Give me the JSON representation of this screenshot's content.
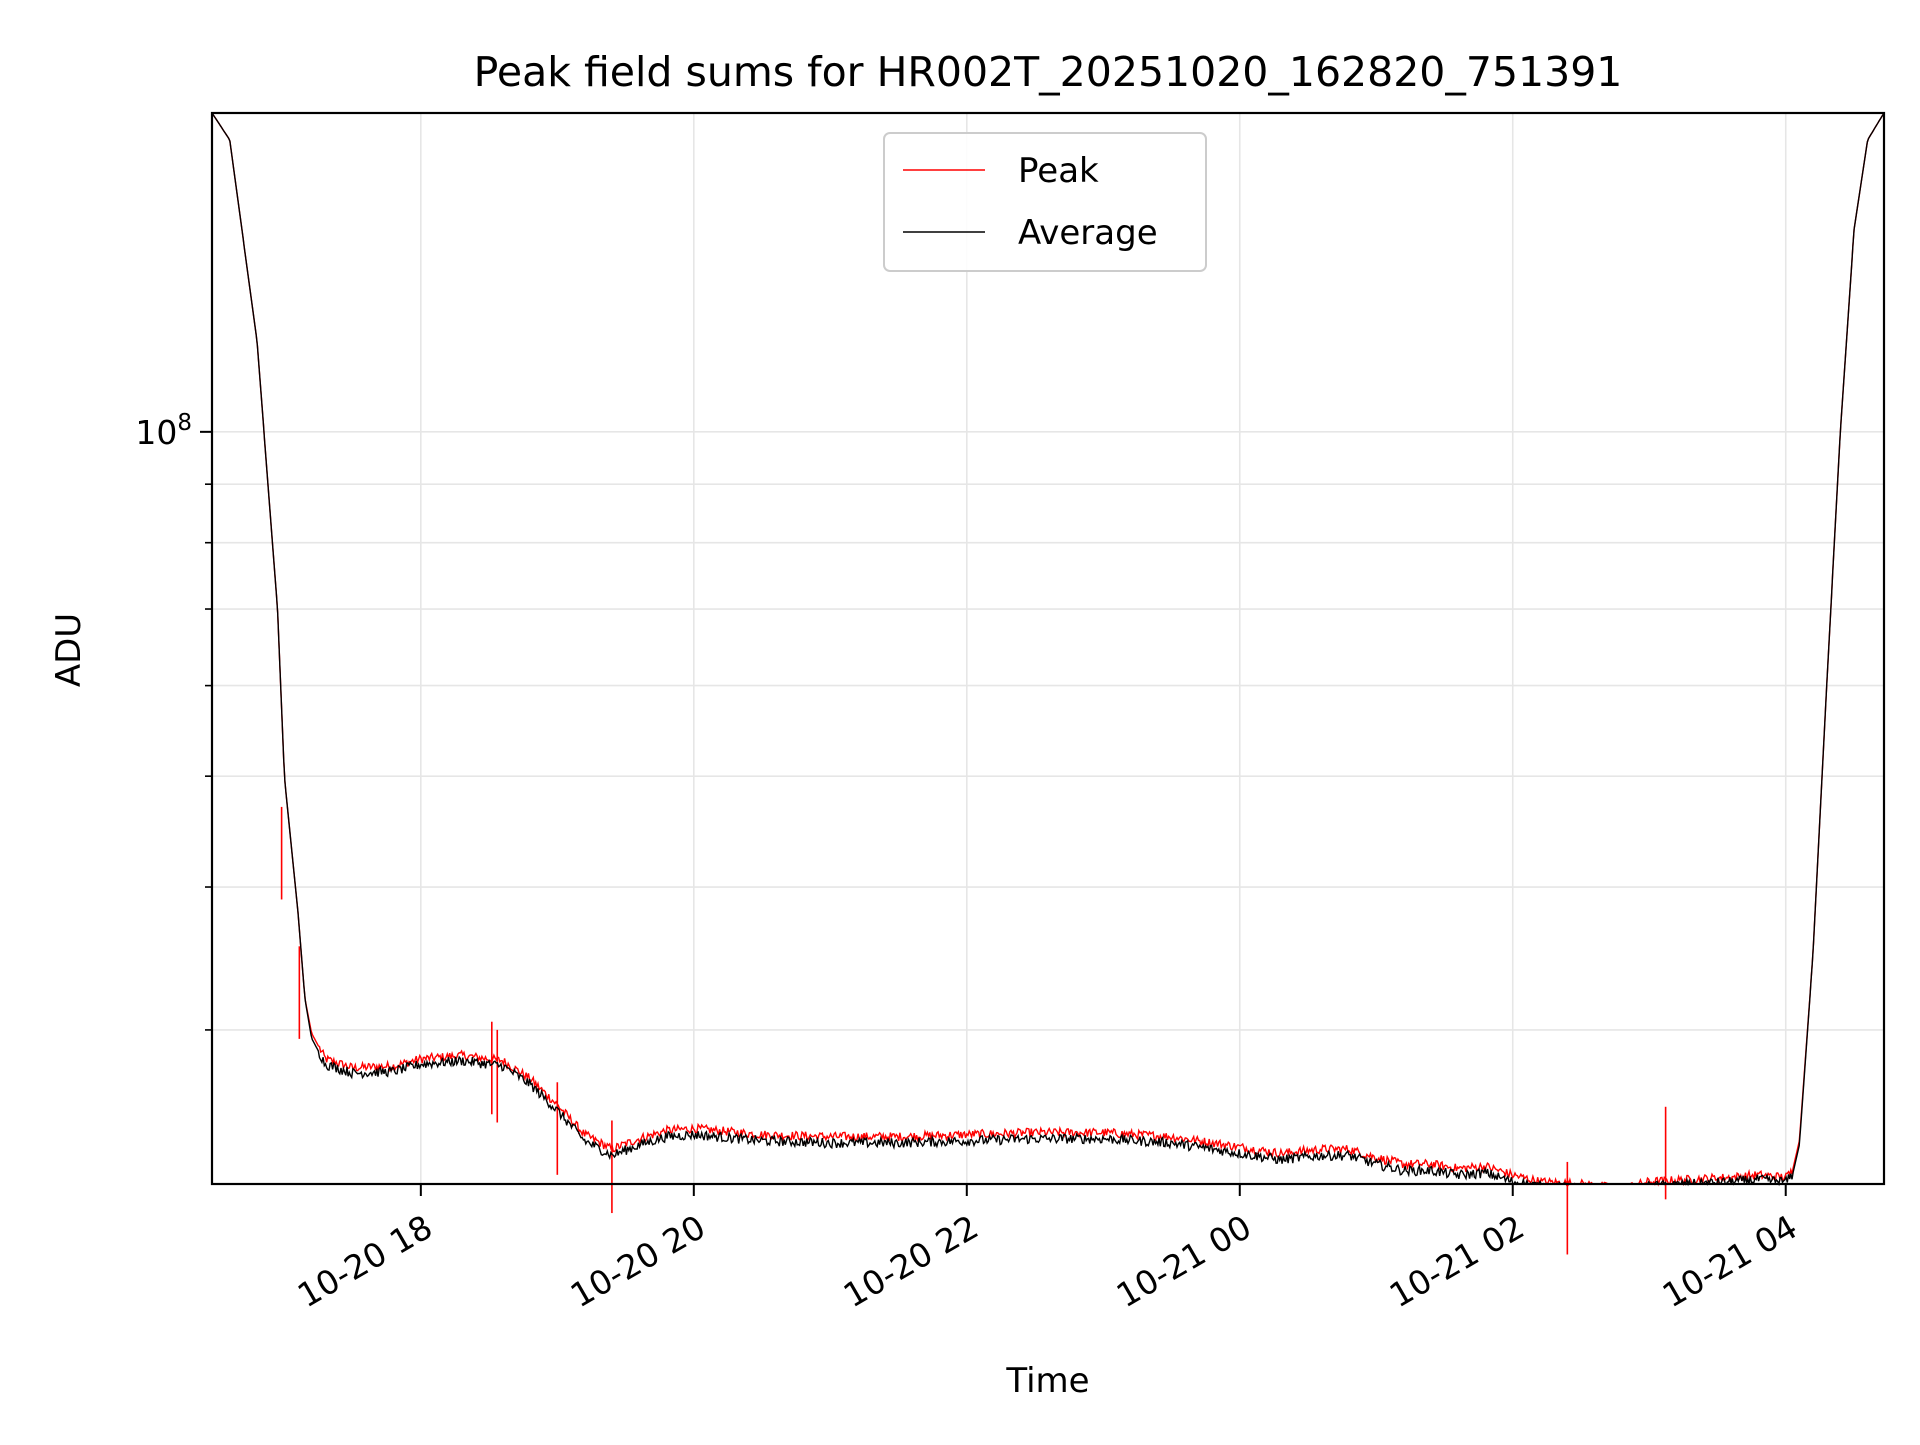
{
  "chart_data": {
    "type": "line",
    "title": "Peak field sums for HR002T_20251020_162820_751391",
    "xlabel": "Time",
    "ylabel": "ADU",
    "yscale": "log",
    "ylim": [
      22000000,
      190000000
    ],
    "xlim_hours": [
      16.47,
      4.72
    ],
    "grid": true,
    "legend_position": "upper center",
    "x_ticks": [
      {
        "hour": 18,
        "label": "10-20 18"
      },
      {
        "hour": 20,
        "label": "10-20 20"
      },
      {
        "hour": 22,
        "label": "10-20 22"
      },
      {
        "hour": 24,
        "label": "10-21 00"
      },
      {
        "hour": 26,
        "label": "10-21 02"
      },
      {
        "hour": 28,
        "label": "10-21 04"
      }
    ],
    "y_major_tick": {
      "value": 100000000,
      "label_base": "10",
      "label_exp": "8"
    },
    "y_minor_ticks": [
      30000000,
      40000000,
      50000000,
      60000000,
      70000000,
      80000000,
      90000000,
      200000000
    ],
    "series": [
      {
        "name": "Peak",
        "color": "#ff0000",
        "x_hours": [
          16.47,
          16.6,
          16.8,
          16.95,
          17.0,
          17.1,
          17.15,
          17.2,
          17.3,
          17.5,
          17.8,
          18.0,
          18.3,
          18.6,
          18.8,
          19.0,
          19.2,
          19.4,
          19.6,
          19.8,
          20.0,
          20.5,
          21.0,
          21.5,
          22.0,
          22.5,
          23.0,
          23.5,
          24.0,
          24.3,
          24.6,
          24.8,
          25.0,
          25.2,
          25.4,
          25.6,
          25.8,
          26.0,
          26.2,
          26.5,
          26.8,
          27.0,
          27.3,
          27.6,
          27.8,
          28.0,
          28.05,
          28.1,
          28.2,
          28.3,
          28.4,
          28.5,
          28.6,
          28.72
        ],
        "values": [
          190000000,
          180000000,
          120000000,
          70000000,
          50000000,
          38000000,
          32000000,
          29800000,
          28300000,
          27800000,
          27900000,
          28300000,
          28500000,
          28200000,
          27200000,
          25800000,
          24300000,
          23600000,
          24100000,
          24500000,
          24600000,
          24300000,
          24200000,
          24200000,
          24300000,
          24400000,
          24400000,
          24200000,
          23700000,
          23400000,
          23600000,
          23600000,
          23200000,
          22900000,
          22900000,
          22700000,
          22800000,
          22400000,
          22100000,
          22000000,
          21800000,
          22100000,
          22200000,
          22300000,
          22400000,
          22300000,
          22600000,
          24000000,
          35000000,
          60000000,
          100000000,
          150000000,
          180000000,
          190000000
        ],
        "spikes": [
          {
            "hour": 16.98,
            "value": 47000000
          },
          {
            "hour": 17.11,
            "value": 35500000
          },
          {
            "hour": 18.52,
            "value": 30500000
          },
          {
            "hour": 18.56,
            "value": 30000000
          },
          {
            "hour": 19.0,
            "value": 27000000
          },
          {
            "hour": 19.4,
            "value": 25000000
          },
          {
            "hour": 26.4,
            "value": 23000000
          },
          {
            "hour": 27.12,
            "value": 25700000
          }
        ]
      },
      {
        "name": "Average",
        "color": "#000000",
        "x_hours": [
          16.47,
          16.6,
          16.8,
          16.95,
          17.0,
          17.1,
          17.15,
          17.2,
          17.3,
          17.5,
          17.8,
          18.0,
          18.3,
          18.6,
          18.8,
          19.0,
          19.2,
          19.4,
          19.6,
          19.8,
          20.0,
          20.5,
          21.0,
          21.5,
          22.0,
          22.5,
          23.0,
          23.5,
          24.0,
          24.3,
          24.6,
          24.8,
          25.0,
          25.2,
          25.4,
          25.6,
          25.8,
          26.0,
          26.2,
          26.5,
          26.8,
          27.0,
          27.3,
          27.6,
          27.8,
          28.0,
          28.05,
          28.1,
          28.2,
          28.3,
          28.4,
          28.5,
          28.6,
          28.72
        ],
        "values": [
          190000000,
          180000000,
          120000000,
          70000000,
          50000000,
          38000000,
          32000000,
          29500000,
          28000000,
          27500000,
          27600000,
          28000000,
          28200000,
          27900000,
          26900000,
          25500000,
          24000000,
          23300000,
          23800000,
          24200000,
          24300000,
          24000000,
          23900000,
          23900000,
          24000000,
          24100000,
          24100000,
          23900000,
          23400000,
          23100000,
          23300000,
          23300000,
          22900000,
          22600000,
          22600000,
          22400000,
          22500000,
          22100000,
          21900000,
          21800000,
          21600000,
          21900000,
          22000000,
          22100000,
          22200000,
          22100000,
          22400000,
          23800000,
          35000000,
          60000000,
          100000000,
          150000000,
          180000000,
          190000000
        ]
      }
    ]
  }
}
